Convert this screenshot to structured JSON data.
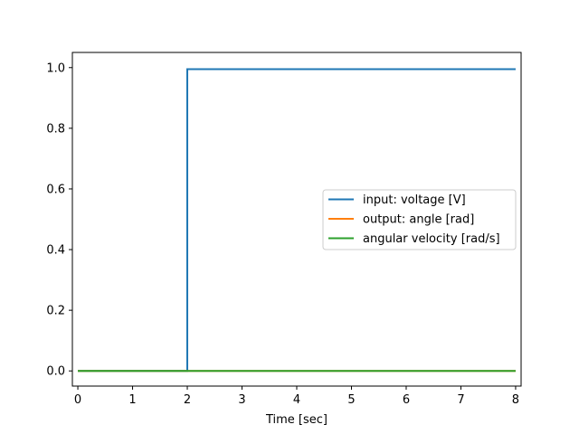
{
  "chart_data": {
    "type": "line",
    "title": "",
    "xlabel": "Time [sec]",
    "ylabel": "",
    "xlim": [
      -0.1,
      8.1
    ],
    "ylim": [
      -0.05,
      1.05
    ],
    "xticks": [
      0,
      1,
      2,
      3,
      4,
      5,
      6,
      7,
      8
    ],
    "xtick_labels": [
      "0",
      "1",
      "2",
      "3",
      "4",
      "5",
      "6",
      "7",
      "8"
    ],
    "yticks": [
      0.0,
      0.2,
      0.4,
      0.6,
      0.8,
      1.0
    ],
    "ytick_labels": [
      "0.0",
      "0.2",
      "0.4",
      "0.6",
      "0.8",
      "1.0"
    ],
    "grid": false,
    "legend_position": "center-right",
    "series": [
      {
        "name": "input: voltage [V]",
        "color": "#1f77b4",
        "x": [
          0,
          2,
          2,
          8
        ],
        "y": [
          0,
          0,
          0.995,
          0.995
        ]
      },
      {
        "name": "output: angle [rad]",
        "color": "#ff7f0e",
        "x": [
          0,
          8
        ],
        "y": [
          0,
          0
        ]
      },
      {
        "name": "angular velocity [rad/s]",
        "color": "#2ca02c",
        "x": [
          0,
          8
        ],
        "y": [
          0,
          0
        ]
      }
    ]
  }
}
